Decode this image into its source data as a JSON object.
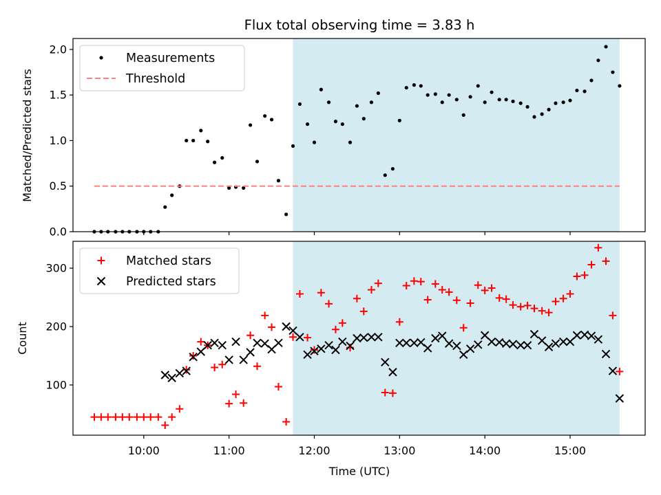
{
  "chart_data": {
    "title": "Flux total observing time = 3.83 h",
    "xlabel": "Time (UTC)",
    "x_unit": "hours (UTC)",
    "xlim": [
      9.17,
      15.88
    ],
    "xticks": [
      10,
      11,
      12,
      13,
      14,
      15
    ],
    "xtick_labels": [
      "10:00",
      "11:00",
      "12:00",
      "13:00",
      "14:00",
      "15:00"
    ],
    "shaded_span": {
      "x_start": 11.75,
      "x_end": 15.58,
      "color": "#d4ebf1"
    },
    "x": [
      9.42,
      9.5,
      9.58,
      9.67,
      9.75,
      9.83,
      9.92,
      10.0,
      10.08,
      10.17,
      10.25,
      10.33,
      10.42,
      10.5,
      10.58,
      10.67,
      10.75,
      10.83,
      10.92,
      11.0,
      11.08,
      11.17,
      11.25,
      11.33,
      11.42,
      11.5,
      11.58,
      11.67,
      11.75,
      11.83,
      11.92,
      12.0,
      12.08,
      12.17,
      12.25,
      12.33,
      12.42,
      12.5,
      12.58,
      12.67,
      12.75,
      12.83,
      12.92,
      13.0,
      13.08,
      13.17,
      13.25,
      13.33,
      13.42,
      13.5,
      13.58,
      13.67,
      13.75,
      13.83,
      13.92,
      14.0,
      14.08,
      14.17,
      14.25,
      14.33,
      14.42,
      14.5,
      14.58,
      14.67,
      14.75,
      14.83,
      14.92,
      15.0,
      15.08,
      15.17,
      15.25,
      15.33,
      15.42,
      15.5,
      15.58
    ],
    "panels": [
      {
        "type": "scatter",
        "ylabel": "Matched/Predicted stars",
        "ylim": [
          0,
          2.12
        ],
        "yticks": [
          0,
          0.5,
          1.0,
          1.5,
          2.0
        ],
        "ytick_labels": [
          "0.0",
          "0.5",
          "1.0",
          "1.5",
          "2.0"
        ],
        "legend_placement": "top-left",
        "series": [
          {
            "name": "Measurements",
            "marker": "dot",
            "color": "#000000",
            "values": [
              0,
              0,
              0,
              0,
              0,
              0,
              0,
              0,
              0,
              0,
              0.27,
              0.4,
              0.5,
              1.0,
              1.0,
              1.11,
              0.99,
              0.76,
              0.81,
              0.48,
              0.49,
              0.48,
              1.17,
              0.77,
              1.27,
              1.23,
              0.56,
              0.19,
              0.94,
              1.4,
              1.18,
              0.98,
              1.56,
              1.42,
              1.21,
              1.18,
              0.98,
              1.38,
              1.24,
              1.42,
              1.52,
              0.62,
              0.69,
              1.22,
              1.58,
              1.61,
              1.6,
              1.5,
              1.51,
              1.42,
              1.5,
              1.45,
              1.28,
              1.48,
              1.6,
              1.42,
              1.53,
              1.45,
              1.45,
              1.43,
              1.41,
              1.37,
              1.26,
              1.29,
              1.34,
              1.41,
              1.42,
              1.44,
              1.55,
              1.54,
              1.66,
              1.88,
              2.03,
              1.75,
              1.6
            ]
          },
          {
            "name": "Threshold",
            "type": "hline",
            "style": "dashed",
            "color": "#ff8080",
            "value": 0.5,
            "x_range": [
              9.42,
              15.58
            ]
          }
        ]
      },
      {
        "type": "scatter",
        "ylabel": "Count",
        "ylim": [
          14,
          346
        ],
        "yticks": [
          100,
          200,
          300
        ],
        "ytick_labels": [
          "100",
          "200",
          "300"
        ],
        "legend_placement": "top-left",
        "series": [
          {
            "name": "Matched stars",
            "marker": "plus",
            "color": "#ff0000",
            "values": [
              45,
              45,
              45,
              45,
              45,
              45,
              45,
              45,
              45,
              45,
              31,
              45,
              59,
              126,
              150,
              174,
              168,
              130,
              135,
              68,
              84,
              69,
              185,
              132,
              219,
              199,
              97,
              37,
              182,
              256,
              181,
              160,
              258,
              239,
              195,
              206,
              164,
              248,
              226,
              263,
              274,
              87,
              86,
              208,
              270,
              278,
              277,
              246,
              273,
              263,
              259,
              245,
              198,
              240,
              271,
              262,
              266,
              249,
              247,
              237,
              234,
              236,
              231,
              227,
              224,
              243,
              248,
              256,
              286,
              288,
              306,
              335,
              312,
              219,
              123
            ]
          },
          {
            "name": "Predicted stars",
            "marker": "x",
            "color": "#000000",
            "values": [
              null,
              null,
              null,
              null,
              null,
              null,
              null,
              null,
              null,
              null,
              117,
              112,
              120,
              124,
              148,
              157,
              168,
              172,
              168,
              143,
              174,
              143,
              156,
              172,
              171,
              161,
              172,
              200,
              193,
              182,
              152,
              158,
              162,
              168,
              160,
              174,
              167,
              180,
              181,
              182,
              182,
              139,
              122,
              172,
              172,
              172,
              173,
              163,
              180,
              184,
              171,
              167,
              152,
              162,
              169,
              185,
              174,
              173,
              171,
              170,
              168,
              168,
              187,
              176,
              165,
              171,
              174,
              174,
              185,
              186,
              184,
              178,
              153,
              124,
              77
            ]
          }
        ]
      }
    ]
  }
}
